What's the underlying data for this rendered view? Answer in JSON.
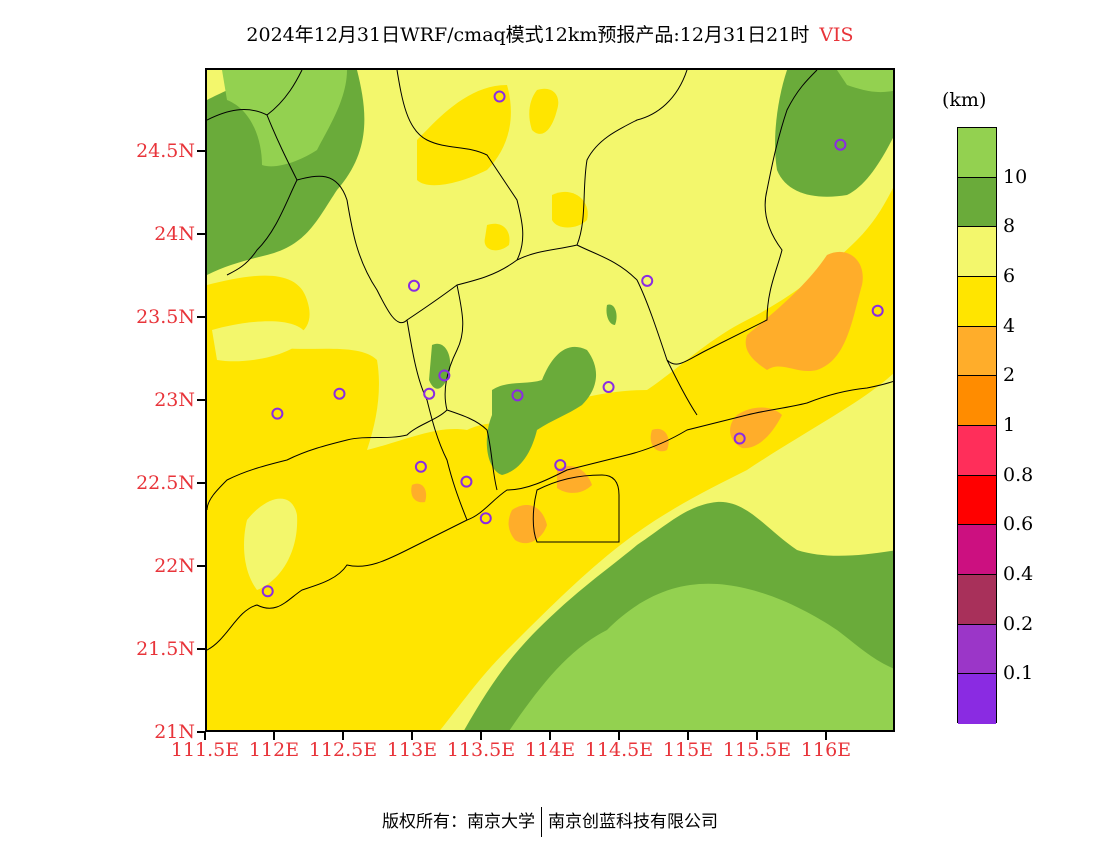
{
  "title": {
    "main": "2024年12月31日WRF/cmaq模式12km预报产品:12月31日21时",
    "variable": "VIS"
  },
  "map": {
    "lon_range": [
      111.5,
      116.5
    ],
    "lat_range": [
      21,
      25
    ],
    "lat_ticks": [
      {
        "value": 24.5,
        "label": "24.5N"
      },
      {
        "value": 24,
        "label": "24N"
      },
      {
        "value": 23.5,
        "label": "23.5N"
      },
      {
        "value": 23,
        "label": "23N"
      },
      {
        "value": 22.5,
        "label": "22.5N"
      },
      {
        "value": 22,
        "label": "22N"
      },
      {
        "value": 21.5,
        "label": "21.5N"
      },
      {
        "value": 21,
        "label": "21N"
      }
    ],
    "lon_ticks": [
      {
        "value": 111.5,
        "label": "111.5E"
      },
      {
        "value": 112,
        "label": "112E"
      },
      {
        "value": 112.5,
        "label": "112.5E"
      },
      {
        "value": 113,
        "label": "113E"
      },
      {
        "value": 113.5,
        "label": "113.5E"
      },
      {
        "value": 114,
        "label": "114E"
      },
      {
        "value": 114.5,
        "label": "114.5E"
      },
      {
        "value": 115,
        "label": "115E"
      },
      {
        "value": 115.5,
        "label": "115.5E"
      },
      {
        "value": 116,
        "label": "116E"
      }
    ],
    "stations": [
      {
        "lon": 113.62,
        "lat": 24.84
      },
      {
        "lon": 116.09,
        "lat": 24.55
      },
      {
        "lon": 113.0,
        "lat": 23.7
      },
      {
        "lon": 114.69,
        "lat": 23.73
      },
      {
        "lon": 116.36,
        "lat": 23.55
      },
      {
        "lon": 112.46,
        "lat": 23.05
      },
      {
        "lon": 112.01,
        "lat": 22.93
      },
      {
        "lon": 113.22,
        "lat": 23.16
      },
      {
        "lon": 113.11,
        "lat": 23.05
      },
      {
        "lon": 113.75,
        "lat": 23.04
      },
      {
        "lon": 114.41,
        "lat": 23.09
      },
      {
        "lon": 115.36,
        "lat": 22.78
      },
      {
        "lon": 113.05,
        "lat": 22.61
      },
      {
        "lon": 114.06,
        "lat": 22.62
      },
      {
        "lon": 113.38,
        "lat": 22.52
      },
      {
        "lon": 113.52,
        "lat": 22.3
      },
      {
        "lon": 111.94,
        "lat": 21.86
      }
    ]
  },
  "legend": {
    "unit": "(km)",
    "colors": [
      "#93d150",
      "#6aab3a",
      "#f3f76c",
      "#ffe500",
      "#ffad2a",
      "#ff8c00",
      "#ff2e5a",
      "#ff0000",
      "#cc1080",
      "#a8305a",
      "#9b36c8",
      "#8a2be2"
    ],
    "labels": [
      "10",
      "8",
      "6",
      "4",
      "2",
      "1",
      "0.8",
      "0.6",
      "0.4",
      "0.2",
      "0.1"
    ]
  },
  "footer": {
    "left": "版权所有：南京大学",
    "right": "南京创蓝科技有限公司"
  }
}
